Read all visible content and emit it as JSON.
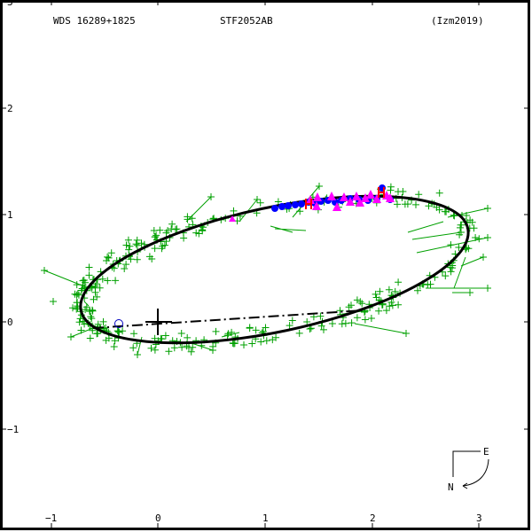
{
  "header": {
    "left": "WDS 16289+1825",
    "center": "STF2052AB",
    "right": "(Izm2019)"
  },
  "compass": {
    "east": "E",
    "north": "N"
  },
  "colors": {
    "frame": "#000000",
    "orbit": "#000000",
    "visual_obs": "#00a000",
    "speckle_obs": "#0000ff",
    "interferometric_obs": "#ff00ff",
    "special_obs": "#ff0000",
    "periastron_marker": "#0000c0"
  },
  "chart_data": {
    "type": "scatter",
    "title": "WDS 16289+1825  STF2052AB  (Izm2019)",
    "xlabel": "",
    "ylabel": "",
    "xlim": [
      -1.45,
      3.45
    ],
    "ylim": [
      -1.95,
      3.0
    ],
    "x_ticks": [
      "-1",
      "0",
      "1",
      "2",
      "3"
    ],
    "y_ticks": [
      "3",
      "2",
      "1",
      "0",
      "-1"
    ],
    "grid": false,
    "orbit": {
      "shape": "ellipse",
      "center": [
        1.09,
        0.49
      ],
      "semi_major": 1.85,
      "semi_minor": 0.58,
      "position_angle_deg": 12,
      "leftmost": [
        -0.72,
        0.11
      ],
      "rightmost": [
        2.89,
        0.87
      ],
      "topmost": [
        2.08,
        1.16
      ],
      "bottommost": [
        0.06,
        -0.19
      ]
    },
    "primary_star": [
      0,
      0
    ],
    "line_of_nodes": {
      "from": [
        -0.6,
        -0.06
      ],
      "to": [
        1.9,
        0.11
      ],
      "style": "dash-dot"
    },
    "periastron_marker": [
      -0.37,
      -0.02
    ],
    "series": [
      {
        "name": "Visual micrometer (green +)",
        "marker": "+",
        "count_approx": 350,
        "regions": [
          "scattered along entire orbit",
          "dense near (-0.6..0.8, 0.1..0.9)",
          "outliers out to (3.0, 1.05)"
        ]
      },
      {
        "name": "Speckle (blue filled circles)",
        "marker": "circle",
        "x_range": [
          1.05,
          2.2
        ],
        "y_range": [
          1.03,
          1.25
        ]
      },
      {
        "name": "Interferometric (magenta triangles)",
        "marker": "triangle",
        "x_range": [
          0.65,
          2.2
        ],
        "y_range": [
          1.0,
          1.27
        ]
      },
      {
        "name": "Special (red H)",
        "marker": "H",
        "points": [
          [
            0.25,
            1.12
          ],
          [
            2.08,
            1.23
          ]
        ]
      }
    ]
  }
}
